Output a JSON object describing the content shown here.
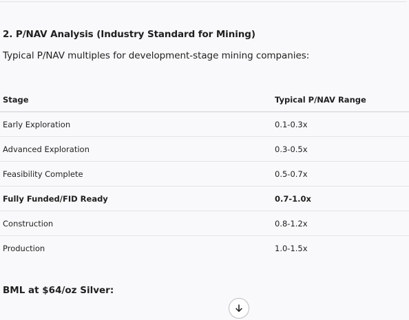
{
  "section": {
    "heading": "2. P/NAV Analysis (Industry Standard for Mining)",
    "intro": "Typical P/NAV multiples for development-stage mining companies:"
  },
  "table": {
    "headers": [
      "Stage",
      "Typical P/NAV Range"
    ],
    "rows": [
      {
        "stage": "Early Exploration",
        "range": "0.1-0.3x"
      },
      {
        "stage": "Advanced Exploration",
        "range": "0.3-0.5x"
      },
      {
        "stage": "Feasibility Complete",
        "range": "0.5-0.7x"
      },
      {
        "stage": "Fully Funded/FID Ready",
        "range": "0.7-1.0x"
      },
      {
        "stage": "Construction",
        "range": "0.8-1.2x"
      },
      {
        "stage": "Production",
        "range": "1.0-1.5x"
      }
    ]
  },
  "subsection": {
    "heading": "BML at $64/oz Silver:"
  },
  "icons": {
    "scroll_down": "arrow-down-icon"
  },
  "colors": {
    "background": "#f9f9fb",
    "text": "#1f1f1f",
    "divider": "#e4e4e8"
  }
}
